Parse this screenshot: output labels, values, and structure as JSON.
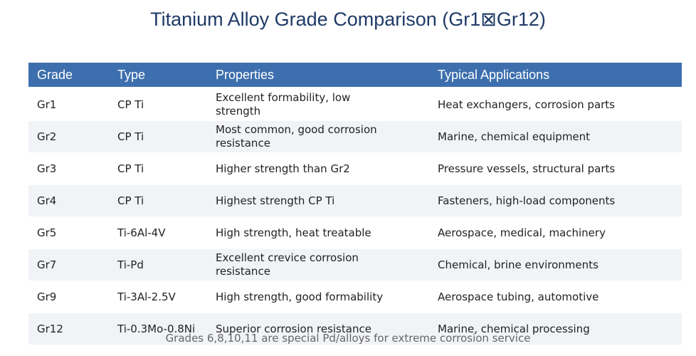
{
  "title": "Titanium Alloy Grade Comparison (Gr1⊠Gr12)",
  "table": {
    "header": [
      "Grade",
      "Type",
      "Properties",
      "Typical Applications"
    ],
    "rows": [
      [
        "Gr1",
        "CP Ti",
        "Excellent formability, low strength",
        "Heat exchangers, corrosion parts"
      ],
      [
        "Gr2",
        "CP Ti",
        "Most common, good corrosion resistance",
        "Marine, chemical equipment"
      ],
      [
        "Gr3",
        "CP Ti",
        "Higher strength than Gr2",
        "Pressure vessels, structural parts"
      ],
      [
        "Gr4",
        "CP Ti",
        "Highest strength CP Ti",
        "Fasteners, high-load components"
      ],
      [
        "Gr5",
        "Ti-6Al-4V",
        "High strength, heat treatable",
        "Aerospace, medical, machinery"
      ],
      [
        "Gr7",
        "Ti-Pd",
        "Excellent crevice corrosion resistance",
        "Chemical, brine environments"
      ],
      [
        "Gr9",
        "Ti-3Al-2.5V",
        "High strength, good formability",
        "Aerospace tubing, automotive"
      ],
      [
        "Gr12",
        "Ti-0.3Mo-0.8Ni",
        "Superior corrosion resistance",
        "Marine, chemical processing"
      ]
    ]
  },
  "footnote": "Grades 6,8,10,11 are special Pd/alloys for extreme corrosion service"
}
